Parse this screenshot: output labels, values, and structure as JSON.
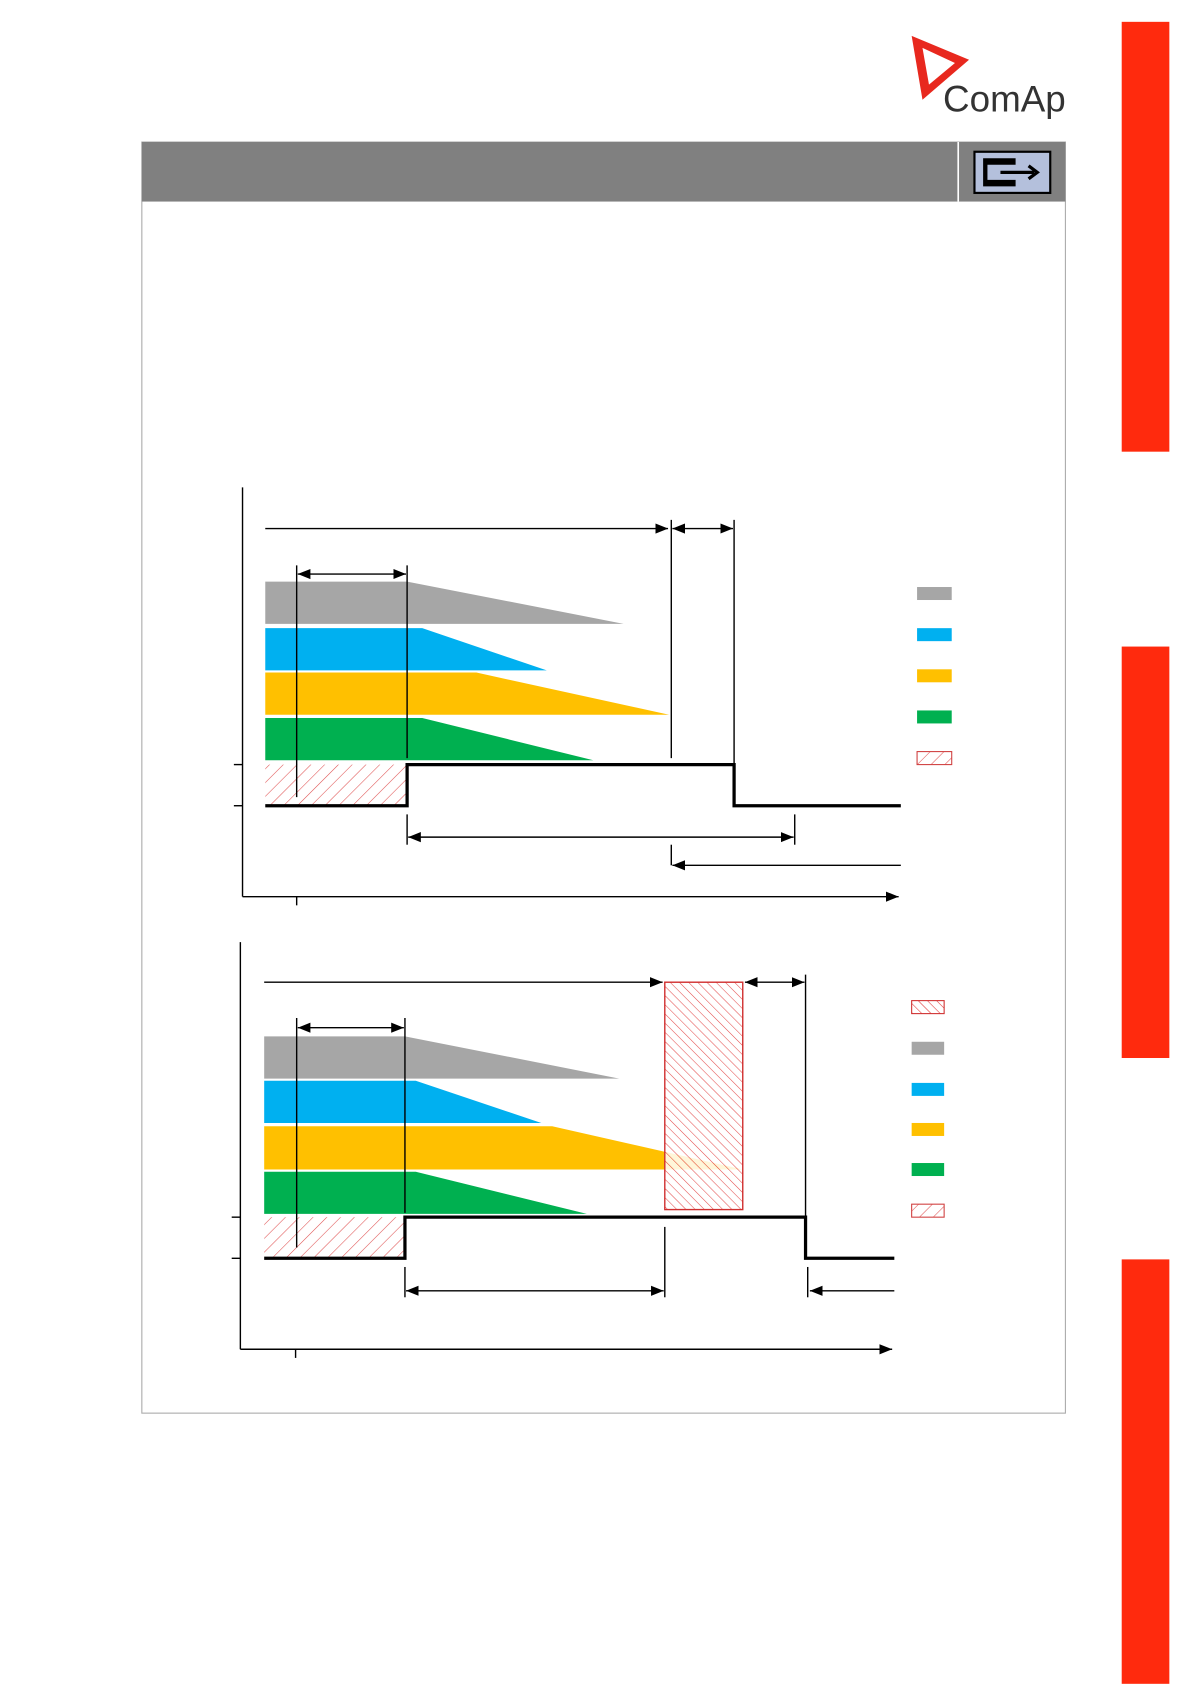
{
  "logo": {
    "text": "ComAp"
  }
}
